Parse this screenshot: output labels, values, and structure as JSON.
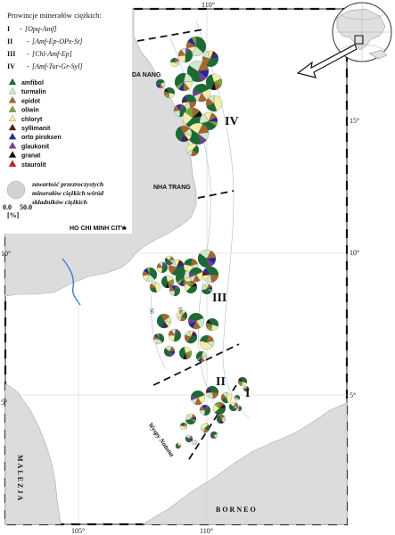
{
  "legend": {
    "title": "Prowincje minerałów ciężkich:",
    "provinces": [
      {
        "num": "I",
        "sep": "-",
        "text": "[Opq-Amf]"
      },
      {
        "num": "II",
        "sep": "-",
        "text": "[Amf-Ep-OPx-St]"
      },
      {
        "num": "III",
        "sep": "-",
        "text": "[Chl-Amf-Ep]"
      },
      {
        "num": "IV",
        "sep": "-",
        "text": "[Amf-Tur-Gr-Syl]"
      }
    ],
    "minerals": [
      {
        "name": "amfibol",
        "color": "#1b6b34"
      },
      {
        "name": "turmalin",
        "color": "#cfe9c9"
      },
      {
        "name": "epidot",
        "color": "#a8652c"
      },
      {
        "name": "oliwin",
        "color": "#7aa33a"
      },
      {
        "name": "chloryt",
        "color": "#f3efaa"
      },
      {
        "name": "syllimanit",
        "color": "#5a1e12"
      },
      {
        "name": "orto piroksen",
        "color": "#1e2a9c"
      },
      {
        "name": "glaukonit",
        "color": "#7a3a9a"
      },
      {
        "name": "granat",
        "color": "#111111"
      },
      {
        "name": "staurolit",
        "color": "#d11a1a"
      }
    ],
    "size_text": [
      "zawartość przezroczystych",
      "minerałów ciężkich wśród",
      "składników ciężkich"
    ],
    "scale_labels": [
      "0.0",
      "50.0"
    ],
    "scale_unit": "[%]"
  },
  "map": {
    "coords": {
      "top": [
        "110°"
      ],
      "bottom": [
        "105°",
        "110°"
      ],
      "left": [
        "10°",
        "5°"
      ],
      "right": [
        "15°",
        "10°",
        "5°"
      ]
    },
    "places": [
      "DA NANG",
      "NHA TRANG",
      "HO CHI MINH CITY",
      "MALEZJA",
      "BORNEO",
      "Wyspy Natuna"
    ],
    "provinces_on_map": [
      "I",
      "II",
      "III",
      "IV"
    ],
    "contours": [
      "50",
      "100"
    ]
  },
  "colors": {
    "land": "#dcdcdc",
    "sea": "#ffffff",
    "river": "#3a78d8"
  }
}
